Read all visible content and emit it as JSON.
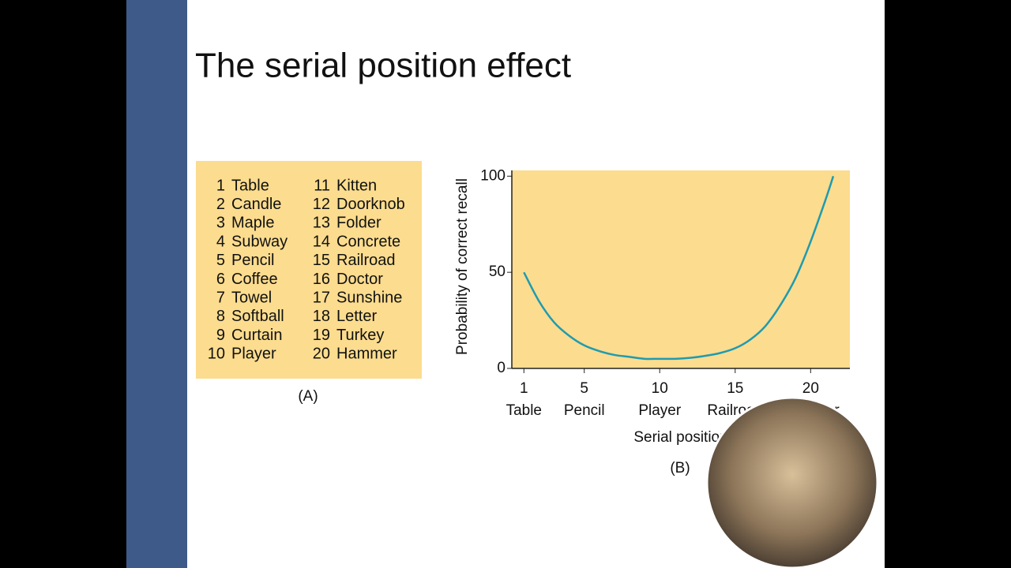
{
  "title": "The serial position effect",
  "word_list": {
    "numbers": [
      1,
      2,
      3,
      4,
      5,
      6,
      7,
      8,
      9,
      10,
      11,
      12,
      13,
      14,
      15,
      16,
      17,
      18,
      19,
      20
    ],
    "words": [
      "Table",
      "Candle",
      "Maple",
      "Subway",
      "Pencil",
      "Coffee",
      "Towel",
      "Softball",
      "Curtain",
      "Player",
      "Kitten",
      "Doorknob",
      "Folder",
      "Concrete",
      "Railroad",
      "Doctor",
      "Sunshine",
      "Letter",
      "Turkey",
      "Hammer"
    ],
    "caption": "(A)"
  },
  "chart_data": {
    "type": "line",
    "caption": "(B)",
    "x_label": "Serial position",
    "y_label": "Probability of correct recall",
    "x": [
      1,
      2,
      3,
      4,
      5,
      6,
      7,
      8,
      9,
      10,
      11,
      12,
      13,
      14,
      15,
      16,
      17,
      18,
      19,
      20,
      21,
      21.5
    ],
    "series": [
      {
        "color": "#1f9bb0",
        "values": [
          50,
          35,
          24,
          17,
          12,
          9,
          7,
          6,
          5,
          5,
          5,
          5.5,
          6.5,
          8,
          10.5,
          15,
          22,
          33,
          47,
          66,
          88,
          100
        ]
      }
    ],
    "xlim": [
      0.2,
      22.6
    ],
    "ylim": [
      0,
      103
    ],
    "xticks": [
      1,
      5,
      10,
      15,
      20
    ],
    "xtick_words": [
      "Table",
      "Pencil",
      "Player",
      "Railroad",
      "Hammer"
    ],
    "yticks": [
      0,
      50,
      100
    ],
    "plot_background": "#fcdc8e"
  }
}
